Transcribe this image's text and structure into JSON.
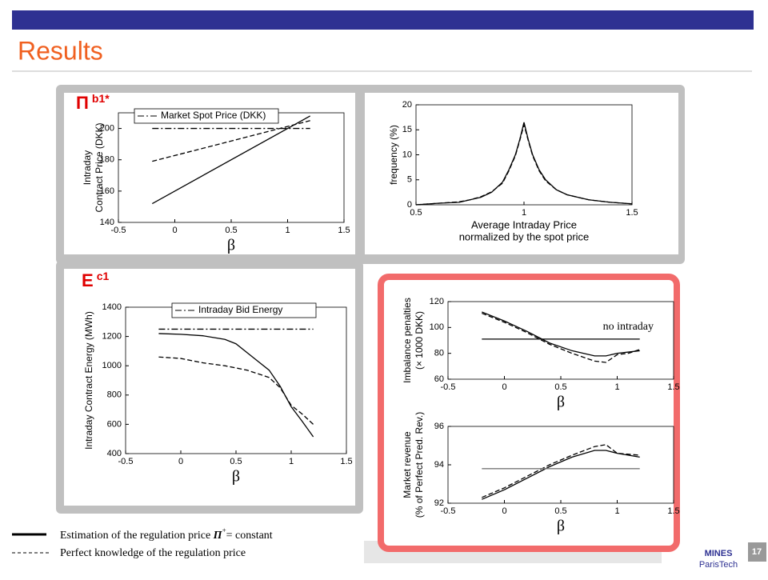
{
  "slide": {
    "title": "Results",
    "page_number": "17",
    "logo": [
      "MINES",
      "ParisTech"
    ],
    "legend": [
      {
        "text": "Estimation of the regulation price",
        "symbol": "Π",
        "symbol_sup": "+",
        "suffix": "= constant"
      },
      {
        "text": "Perfect knowledge of the regulation price"
      }
    ]
  },
  "chart_data": [
    {
      "type": "line",
      "label": "Π",
      "label_sup": "b1*",
      "x_label": "β",
      "y_label": [
        "Intraday",
        "Contract Price (DKK)"
      ],
      "xlim": [
        -0.5,
        1.5
      ],
      "xticks": [
        -0.5,
        0,
        0.5,
        1,
        1.5
      ],
      "ylim": [
        140,
        210
      ],
      "yticks": [
        140,
        160,
        180,
        200
      ],
      "legend": "upper left",
      "series": [
        {
          "style": "solid",
          "color": "#000000",
          "x": [
            -0.2,
            1.2
          ],
          "values": [
            152,
            208
          ]
        },
        {
          "style": "dashed",
          "color": "#000000",
          "x": [
            -0.2,
            1.2
          ],
          "values": [
            179,
            205
          ]
        },
        {
          "name": "Market Spot Price (DKK)",
          "style": "dashdot",
          "color": "#000000",
          "x": [
            -0.2,
            1.2
          ],
          "values": [
            200,
            200
          ]
        }
      ]
    },
    {
      "type": "line",
      "x_label": [
        "Average Intraday Price",
        "normalized by the spot price"
      ],
      "y_label": [
        "frequency (%)"
      ],
      "xlim": [
        0.5,
        1.5
      ],
      "xticks": [
        0.5,
        1,
        1.5
      ],
      "ylim": [
        0,
        20
      ],
      "yticks": [
        0,
        5,
        10,
        15,
        20
      ],
      "series": [
        {
          "style": "solid",
          "color": "#000000",
          "x": [
            0.5,
            0.6,
            0.7,
            0.75,
            0.8,
            0.85,
            0.9,
            0.93,
            0.96,
            0.98,
            1.0,
            1.02,
            1.04,
            1.07,
            1.1,
            1.15,
            1.2,
            1.3,
            1.4,
            1.5
          ],
          "values": [
            0,
            0.3,
            0.5,
            1,
            1.5,
            2.5,
            4.5,
            7,
            10,
            13,
            16.5,
            13,
            10,
            7,
            5,
            3,
            2,
            1,
            0.5,
            0.2
          ]
        },
        {
          "style": "dashed",
          "color": "#000000",
          "x": [
            0.5,
            0.6,
            0.7,
            0.75,
            0.8,
            0.85,
            0.9,
            0.93,
            0.96,
            0.98,
            1.0,
            1.02,
            1.04,
            1.07,
            1.1,
            1.15,
            1.2,
            1.3,
            1.4,
            1.5
          ],
          "values": [
            0,
            0.3,
            0.6,
            1,
            1.6,
            2.6,
            4.3,
            6.8,
            9.8,
            12.8,
            16,
            12.8,
            9.8,
            6.8,
            4.8,
            3,
            2,
            1,
            0.5,
            0.2
          ]
        }
      ]
    },
    {
      "type": "line",
      "label": "E",
      "label_sup": "c1",
      "x_label": "β",
      "y_label": [
        "Intraday Contract Energy (MWh)"
      ],
      "xlim": [
        -0.5,
        1.5
      ],
      "xticks": [
        -0.5,
        0,
        0.5,
        1,
        1.5
      ],
      "ylim": [
        400,
        1400
      ],
      "yticks": [
        400,
        600,
        800,
        1000,
        1200,
        1400
      ],
      "legend": "upper right",
      "series": [
        {
          "style": "solid",
          "color": "#000000",
          "x": [
            -0.2,
            0,
            0.2,
            0.4,
            0.5,
            0.6,
            0.7,
            0.8,
            0.9,
            1,
            1.1,
            1.2
          ],
          "values": [
            1220,
            1215,
            1205,
            1180,
            1150,
            1090,
            1030,
            970,
            860,
            720,
            620,
            515
          ]
        },
        {
          "style": "dashed",
          "color": "#000000",
          "x": [
            -0.2,
            0,
            0.2,
            0.4,
            0.6,
            0.8,
            0.9,
            1,
            1.1,
            1.2
          ],
          "values": [
            1060,
            1050,
            1020,
            1000,
            970,
            920,
            850,
            730,
            670,
            600
          ]
        },
        {
          "name": "Intraday Bid Energy",
          "style": "dashdot",
          "color": "#000000",
          "x": [
            -0.2,
            1.2
          ],
          "values": [
            1250,
            1250
          ]
        }
      ]
    },
    {
      "type": "line",
      "x_label": "β",
      "y_label": [
        "Imbalance penalties",
        "(× 1000 DKK)"
      ],
      "annotation": "no intraday",
      "xlim": [
        -0.5,
        1.5
      ],
      "xticks": [
        -0.5,
        0,
        0.5,
        1,
        1.5
      ],
      "ylim": [
        60,
        120
      ],
      "yticks": [
        60,
        80,
        100,
        120
      ],
      "series": [
        {
          "style": "solid",
          "color": "#000000",
          "x": [
            -0.2,
            0,
            0.2,
            0.4,
            0.6,
            0.8,
            0.9,
            1,
            1.1,
            1.2
          ],
          "values": [
            112,
            105,
            97,
            88,
            82,
            78,
            78,
            80,
            81,
            82
          ]
        },
        {
          "style": "dashed",
          "color": "#000000",
          "x": [
            -0.2,
            0,
            0.2,
            0.4,
            0.6,
            0.8,
            0.9,
            1,
            1.1,
            1.2
          ],
          "values": [
            111,
            104,
            96,
            87,
            80,
            74,
            73,
            79,
            80,
            83
          ]
        },
        {
          "style": "solid",
          "color": "#000000",
          "x": [
            -0.2,
            1.2
          ],
          "values": [
            91,
            91
          ]
        }
      ]
    },
    {
      "type": "line",
      "x_label": "β",
      "y_label": [
        "Market revenue",
        "(% of Perfect Pred. Rev.)"
      ],
      "xlim": [
        -0.5,
        1.5
      ],
      "xticks": [
        -0.5,
        0,
        0.5,
        1,
        1.5
      ],
      "ylim": [
        92,
        96
      ],
      "yticks": [
        92,
        94,
        96
      ],
      "series": [
        {
          "style": "solid",
          "color": "#000000",
          "x": [
            -0.2,
            0,
            0.2,
            0.4,
            0.6,
            0.8,
            0.9,
            1,
            1.2
          ],
          "values": [
            92.2,
            92.7,
            93.3,
            93.9,
            94.4,
            94.75,
            94.75,
            94.6,
            94.4
          ]
        },
        {
          "style": "dashed",
          "color": "#000000",
          "x": [
            -0.2,
            0,
            0.2,
            0.4,
            0.6,
            0.8,
            0.9,
            1,
            1.2
          ],
          "values": [
            92.3,
            92.8,
            93.4,
            94.0,
            94.5,
            94.95,
            95.05,
            94.6,
            94.5
          ]
        },
        {
          "style": "solid",
          "color": "#777777",
          "x": [
            -0.2,
            1.2
          ],
          "values": [
            93.8,
            93.8
          ]
        }
      ]
    }
  ]
}
